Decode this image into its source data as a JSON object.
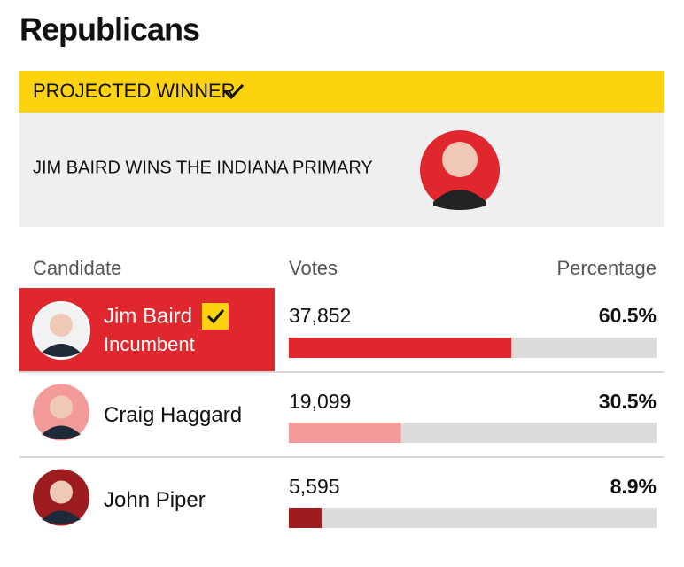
{
  "title": "Republicans",
  "banner": {
    "label": "PROJECTED WINNER",
    "headline": "JIM BAIRD WINS THE INDIANA PRIMARY"
  },
  "table": {
    "columns": [
      "Candidate",
      "Votes",
      "Percentage"
    ],
    "scale_max": 100,
    "rows": [
      {
        "name": "Jim Baird",
        "note": "Incumbent",
        "winner": true,
        "votes": "37,852",
        "percentage": 60.5,
        "percentage_label": "60.5%",
        "color": "#e0272d",
        "photo_bg": "#f2f2f2"
      },
      {
        "name": "Craig Haggard",
        "winner": false,
        "votes": "19,099",
        "percentage": 30.5,
        "percentage_label": "30.5%",
        "color": "#f39a9a",
        "photo_bg": "#f39a9a"
      },
      {
        "name": "John Piper",
        "winner": false,
        "votes": "5,595",
        "percentage": 8.9,
        "percentage_label": "8.9%",
        "color": "#9c1c1f",
        "photo_bg": "#9c1c1f"
      }
    ]
  }
}
